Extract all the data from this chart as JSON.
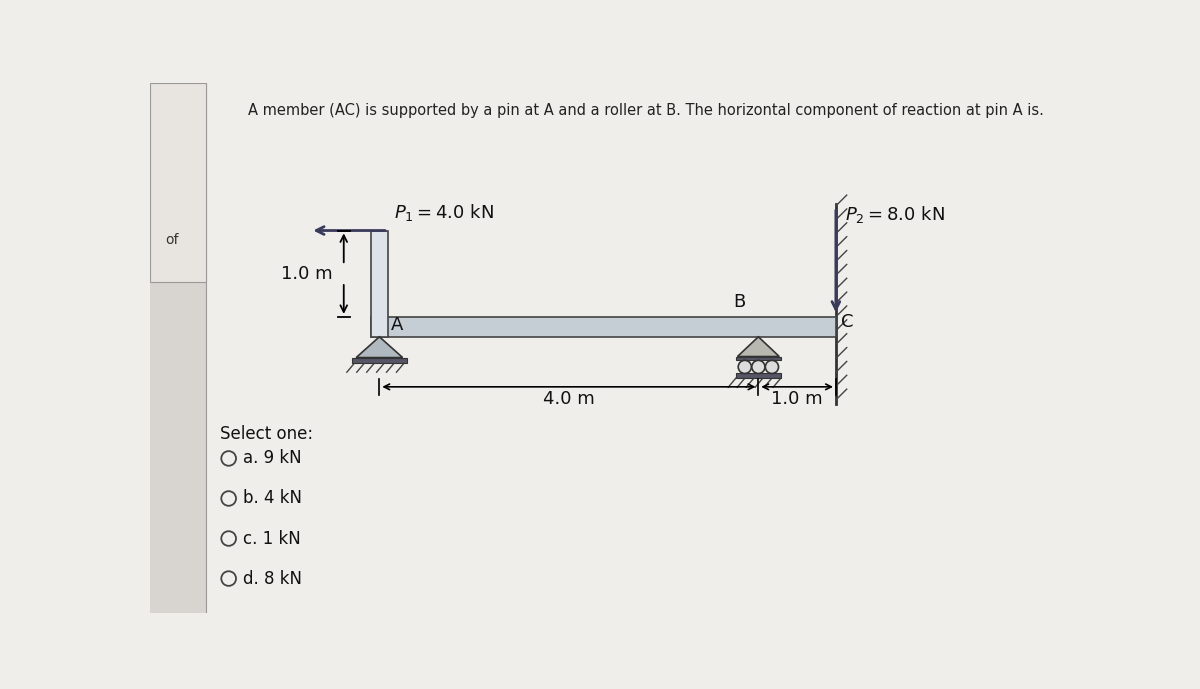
{
  "title": "A member (AC) is supported by a pin at A and a roller at B. The horizontal component of reaction at pin A is.",
  "bg_color": "#f0eeeb",
  "sidebar_color": "#d8d5d0",
  "content_bg": "#f0eeeb",
  "beam_color": "#c5cdd5",
  "beam_edge_color": "#444444",
  "title_fontsize": 10.5,
  "label_fontsize": 13,
  "options_fontsize": 12,
  "P1_label": "$P_1 = 4.0$ kN",
  "P2_label": "$P_2 = 8.0$ kN",
  "dim1_label": "4.0 m",
  "dim2_label": "1.0 m",
  "height_label": "1.0 m",
  "point_A": "A",
  "point_B": "B",
  "point_C": "C",
  "of_text": "of",
  "select_text": "Select one:",
  "options": [
    "a. 9 kN",
    "b. 4 kN",
    "c. 1 kN",
    "d. 8 kN"
  ]
}
